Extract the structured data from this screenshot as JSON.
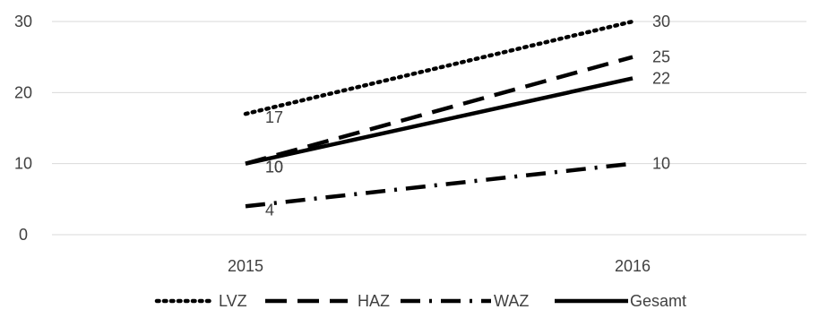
{
  "chart_data": {
    "type": "line",
    "title": "",
    "xlabel": "",
    "ylabel": "",
    "categories": [
      "2015",
      "2016"
    ],
    "ylim": [
      0,
      30
    ],
    "yticks": [
      "0",
      "10",
      "20",
      "30"
    ],
    "grid": true,
    "legend_position": "bottom",
    "series": [
      {
        "name": "LVZ",
        "values": [
          17,
          30
        ],
        "style": "dotted",
        "color": "#000000"
      },
      {
        "name": "HAZ",
        "values": [
          10,
          25
        ],
        "style": "dashed",
        "color": "#000000"
      },
      {
        "name": "WAZ",
        "values": [
          4,
          10
        ],
        "style": "dash-dot",
        "color": "#000000"
      },
      {
        "name": "Gesamt",
        "values": [
          10,
          22
        ],
        "style": "solid",
        "color": "#000000"
      }
    ]
  }
}
